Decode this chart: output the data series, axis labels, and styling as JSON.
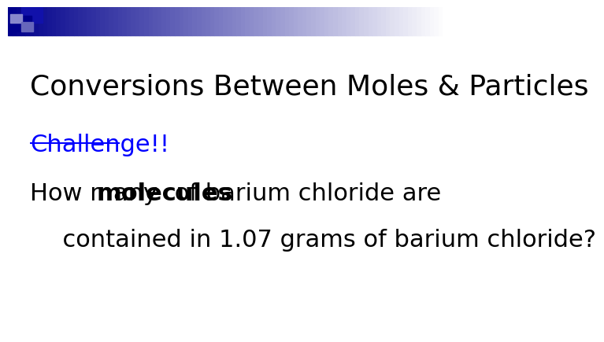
{
  "title": "Conversions Between Moles & Particles",
  "challenge_text": "Challenge!!",
  "prefix": "How many ",
  "bold_word": "molecules",
  "suffix": " of barium chloride are",
  "line2": "  contained in 1.07 grams of barium chloride?",
  "bg_color": "#ffffff",
  "title_color": "#000000",
  "title_fontsize": 26,
  "challenge_color": "#0000ff",
  "challenge_fontsize": 22,
  "body_fontsize": 22,
  "body_color": "#000000"
}
